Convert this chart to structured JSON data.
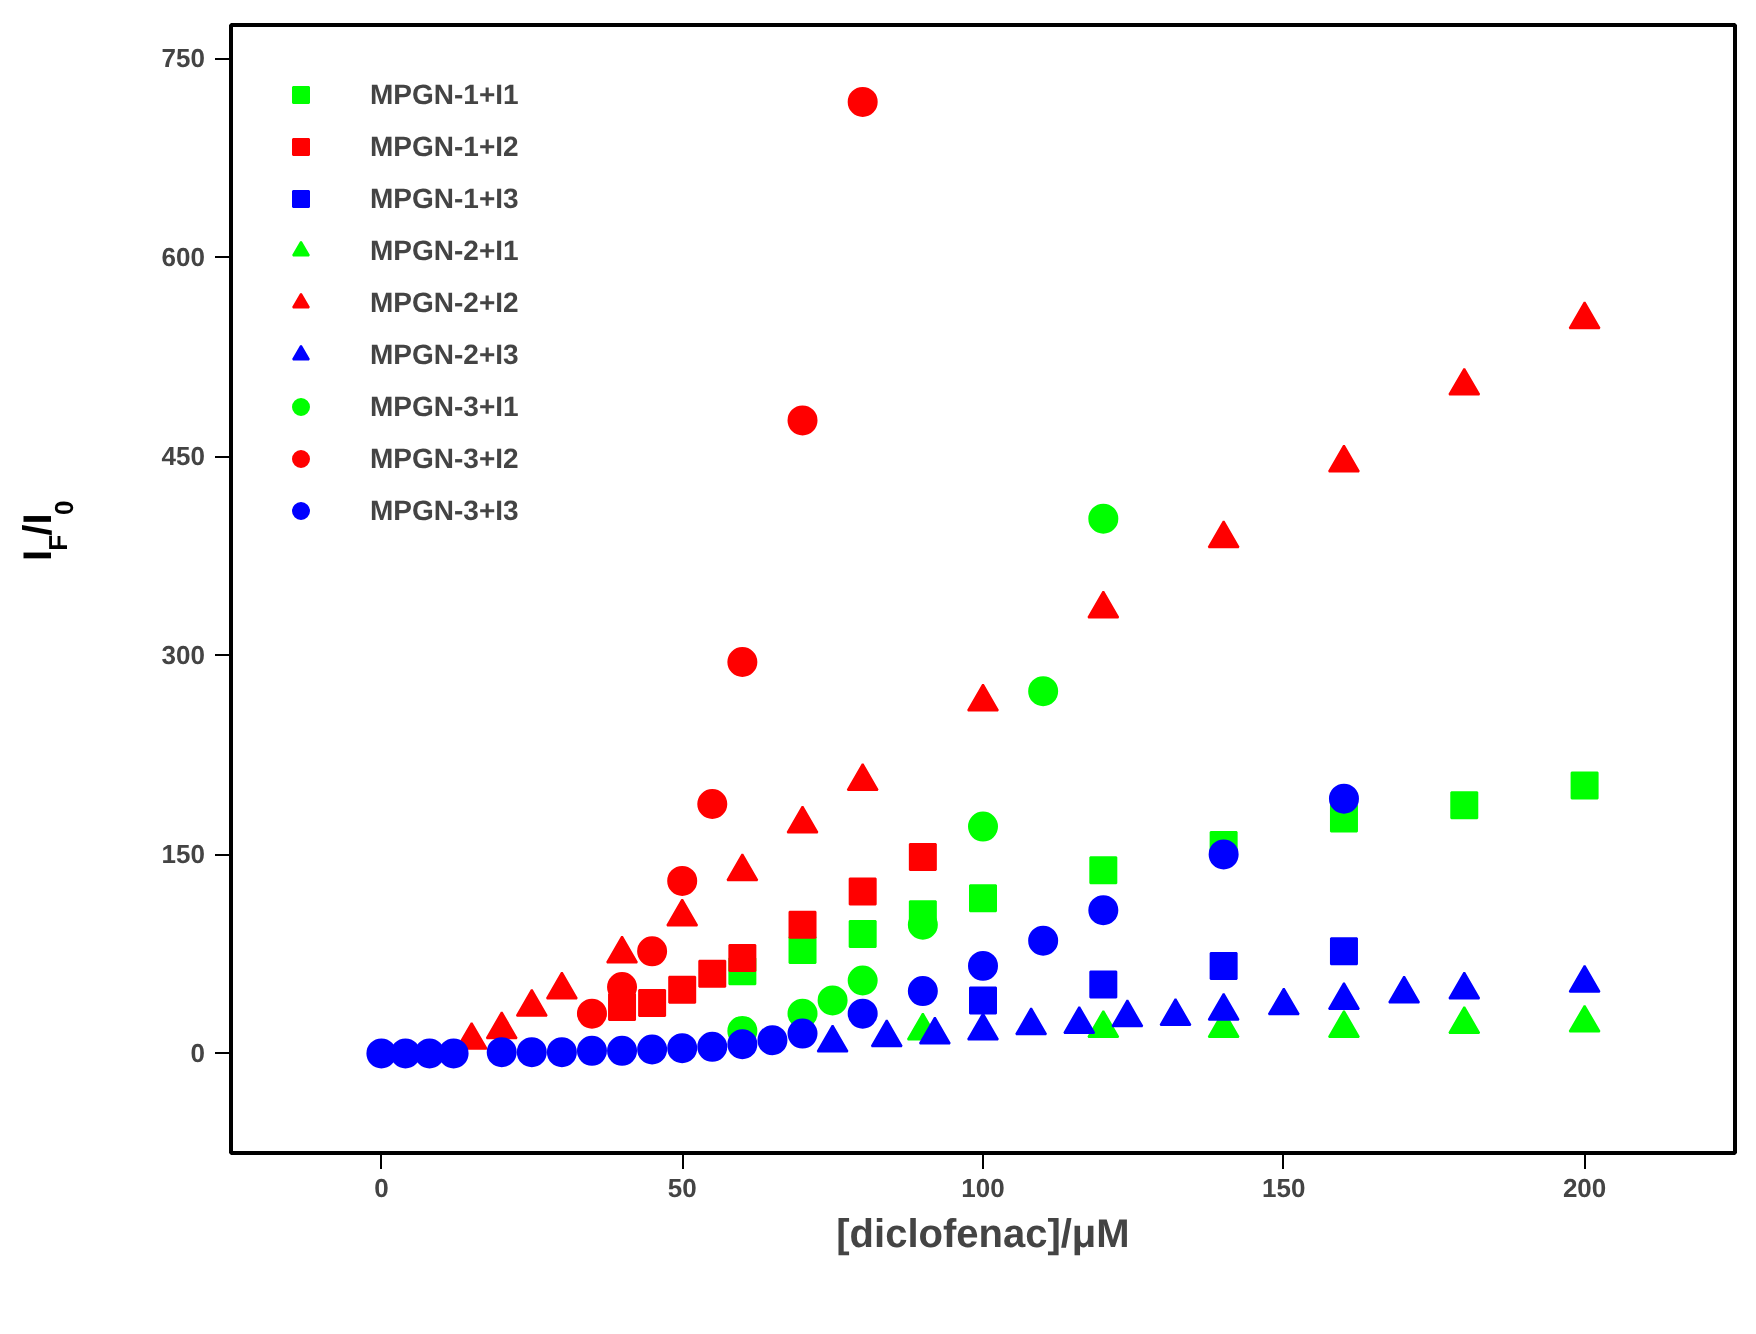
{
  "chart_data": {
    "type": "scatter",
    "xlabel": "[diclofenac]/μM",
    "ylabel": "I$_{F}$/I$_{0}$",
    "xlim": [
      -25,
      225
    ],
    "ylim": [
      -75,
      775
    ],
    "xticks": [
      0,
      50,
      100,
      150,
      200
    ],
    "yticks": [
      0,
      150,
      300,
      450,
      600,
      750
    ],
    "grid": false,
    "legend": "top left",
    "series": [
      {
        "name": "MPGN-1+I1",
        "color": "#00ff00",
        "marker": "square",
        "x": [
          60,
          70,
          80,
          90,
          100,
          120,
          140,
          160,
          180,
          200
        ],
        "values": [
          62,
          78,
          90,
          105,
          117,
          138,
          157,
          177,
          187,
          202
        ]
      },
      {
        "name": "MPGN-1+I2",
        "color": "#ff0000",
        "marker": "square",
        "x": [
          40,
          45,
          50,
          55,
          60,
          70,
          80,
          90
        ],
        "values": [
          35,
          38,
          48,
          60,
          72,
          97,
          122,
          148
        ]
      },
      {
        "name": "MPGN-1+I3",
        "color": "#0000ff",
        "marker": "square",
        "x": [
          100,
          120,
          140,
          160
        ],
        "values": [
          40,
          52,
          66,
          77
        ]
      },
      {
        "name": "MPGN-2+I1",
        "color": "#00ff00",
        "marker": "triangle",
        "x": [
          90,
          120,
          140,
          160,
          180,
          200
        ],
        "values": [
          17,
          19,
          19,
          19,
          22,
          23
        ]
      },
      {
        "name": "MPGN-2+I2",
        "color": "#ff0000",
        "marker": "triangle",
        "x": [
          15,
          20,
          25,
          30,
          40,
          50,
          60,
          70,
          80,
          100,
          120,
          140,
          160,
          180,
          200
        ],
        "values": [
          10,
          18,
          35,
          48,
          75,
          103,
          137,
          173,
          205,
          265,
          335,
          388,
          445,
          503,
          553
        ]
      },
      {
        "name": "MPGN-2+I3",
        "color": "#0000ff",
        "marker": "triangle",
        "x": [
          75,
          84,
          92,
          100,
          108,
          116,
          124,
          132,
          140,
          150,
          160,
          170,
          180,
          200
        ],
        "values": [
          8,
          12,
          14,
          17,
          21,
          22,
          27,
          28,
          32,
          36,
          40,
          45,
          48,
          53
        ]
      },
      {
        "name": "MPGN-3+I1",
        "color": "#00ff00",
        "marker": "circle",
        "x": [
          60,
          70,
          75,
          80,
          90,
          100,
          110,
          120
        ],
        "values": [
          17,
          30,
          40,
          55,
          97,
          171,
          273,
          403
        ]
      },
      {
        "name": "MPGN-3+I2",
        "color": "#ff0000",
        "marker": "circle",
        "x": [
          35,
          40,
          45,
          50,
          55,
          60,
          70,
          80
        ],
        "values": [
          30,
          50,
          77,
          130,
          188,
          295,
          477,
          717
        ]
      },
      {
        "name": "MPGN-3+I3",
        "color": "#0000ff",
        "marker": "circle",
        "x": [
          0,
          4,
          8,
          12,
          20,
          25,
          30,
          35,
          40,
          45,
          50,
          55,
          60,
          65,
          70,
          80,
          90,
          100,
          110,
          120,
          140,
          160
        ],
        "values": [
          0,
          0,
          0,
          0,
          1,
          1,
          1,
          2,
          2,
          3,
          4,
          5,
          7,
          10,
          15,
          30,
          47,
          66,
          85,
          108,
          150,
          192
        ]
      }
    ]
  }
}
